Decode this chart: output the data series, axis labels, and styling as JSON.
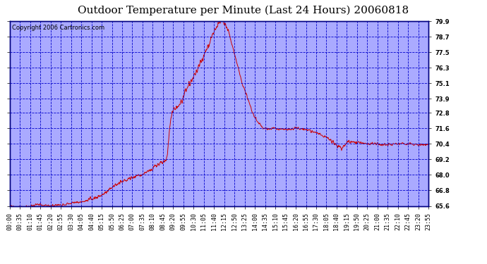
{
  "title": "Outdoor Temperature per Minute (Last 24 Hours) 20060818",
  "copyright": "Copyright 2006 Cartronics.com",
  "line_color": "#cc0000",
  "bg_color": "#aaaaff",
  "grid_color": "#0000cc",
  "border_color": "#000080",
  "ylim": [
    65.6,
    79.9
  ],
  "yticks": [
    65.6,
    66.8,
    68.0,
    69.2,
    70.4,
    71.6,
    72.8,
    73.9,
    75.1,
    76.3,
    77.5,
    78.7,
    79.9
  ],
  "xtick_labels": [
    "00:00",
    "00:35",
    "01:10",
    "01:45",
    "02:20",
    "02:55",
    "03:30",
    "04:05",
    "04:40",
    "05:15",
    "05:50",
    "06:25",
    "07:00",
    "07:35",
    "08:10",
    "08:45",
    "09:20",
    "09:55",
    "10:30",
    "11:05",
    "11:40",
    "12:15",
    "12:50",
    "13:25",
    "14:00",
    "14:35",
    "15:10",
    "15:45",
    "16:20",
    "16:55",
    "17:30",
    "18:05",
    "18:40",
    "19:15",
    "19:50",
    "20:25",
    "21:00",
    "21:35",
    "22:10",
    "22:45",
    "23:20",
    "23:55"
  ],
  "title_fontsize": 11,
  "copyright_fontsize": 6,
  "tick_fontsize": 6,
  "fig_width": 6.9,
  "fig_height": 3.75,
  "dpi": 100
}
